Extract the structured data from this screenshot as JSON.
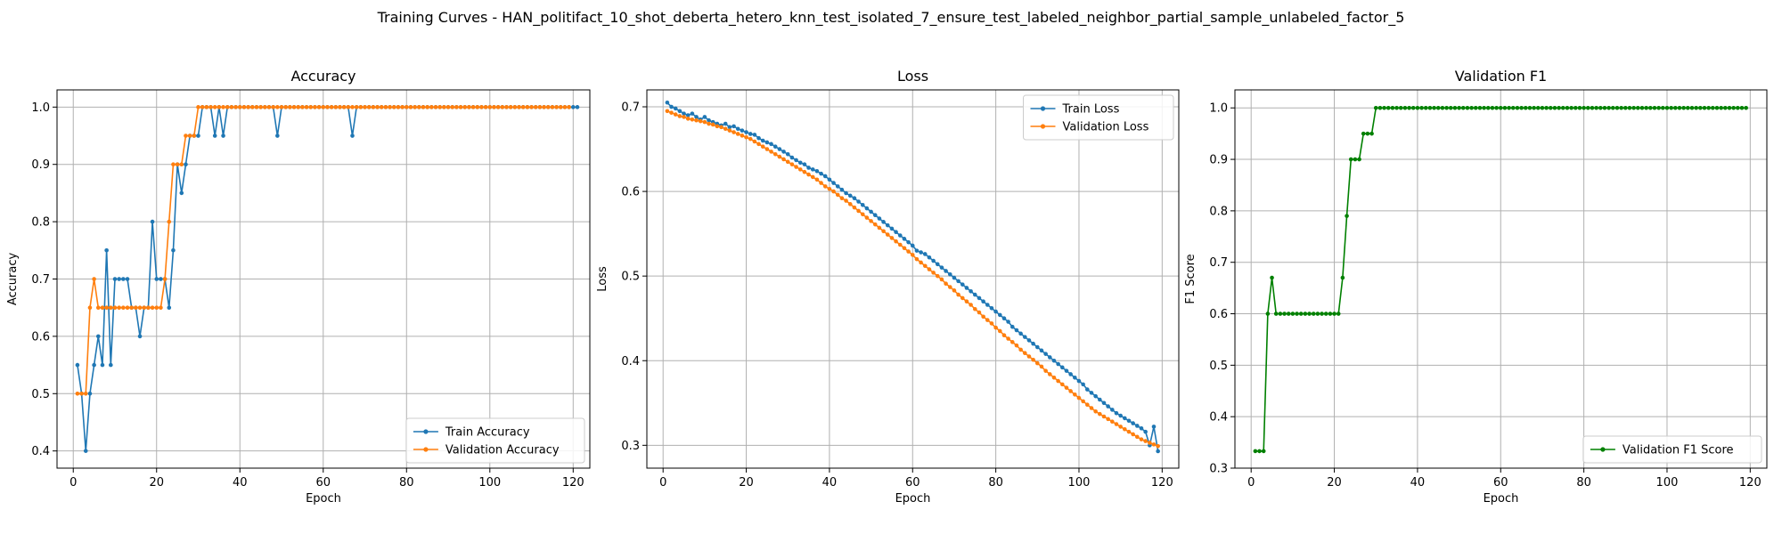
{
  "figure": {
    "suptitle": "Training Curves - HAN_politifact_10_shot_deberta_hetero_knn_test_isolated_7_ensure_test_labeled_neighbor_partial_sample_unlabeled_factor_5"
  },
  "colors": {
    "train": "#1f77b4",
    "val": "#ff7f0e",
    "f1": "#008000",
    "grid": "#b0b0b0"
  },
  "chart_data": [
    {
      "type": "line",
      "title": "Accuracy",
      "xlabel": "Epoch",
      "ylabel": "Accuracy",
      "xlim": [
        -3.9,
        124
      ],
      "ylim": [
        0.37,
        1.03
      ],
      "xticks": [
        0,
        20,
        40,
        60,
        80,
        100,
        120
      ],
      "yticks": [
        0.4,
        0.5,
        0.6,
        0.7,
        0.8,
        0.9,
        1.0
      ],
      "ytick_labels": [
        "0.4",
        "0.5",
        "0.6",
        "0.7",
        "0.8",
        "0.9",
        "1.0"
      ],
      "grid": true,
      "legend_position": "lower-right",
      "x_start": 1,
      "series": [
        {
          "name": "Train Accuracy",
          "color": "#1f77b4",
          "values": [
            0.55,
            0.5,
            0.4,
            0.5,
            0.55,
            0.6,
            0.55,
            0.75,
            0.55,
            0.7,
            0.7,
            0.7,
            0.7,
            0.65,
            0.65,
            0.6,
            0.65,
            0.65,
            0.8,
            0.7,
            0.7,
            0.7,
            0.65,
            0.75,
            0.9,
            0.85,
            0.9,
            0.95,
            0.95,
            0.95,
            1,
            1,
            1,
            0.95,
            1,
            0.95,
            1,
            1,
            1,
            1,
            1,
            1,
            1,
            1,
            1,
            1,
            1,
            1,
            0.95,
            1,
            1,
            1,
            1,
            1,
            1,
            1,
            1,
            1,
            1,
            1,
            1,
            1,
            1,
            1,
            1,
            1,
            0.95,
            1,
            1,
            1,
            1,
            1,
            1,
            1,
            1,
            1,
            1,
            1,
            1,
            1,
            1,
            1,
            1,
            1,
            1,
            1,
            1,
            1,
            1,
            1,
            1,
            1,
            1,
            1,
            1,
            1,
            1,
            1,
            1,
            1,
            1,
            1,
            1,
            1,
            1,
            1,
            1,
            1,
            1,
            1,
            1,
            1,
            1,
            1,
            1,
            1,
            1,
            1,
            1,
            1,
            1
          ]
        },
        {
          "name": "Validation Accuracy",
          "color": "#ff7f0e",
          "values": [
            0.5,
            0.5,
            0.5,
            0.65,
            0.7,
            0.65,
            0.65,
            0.65,
            0.65,
            0.65,
            0.65,
            0.65,
            0.65,
            0.65,
            0.65,
            0.65,
            0.65,
            0.65,
            0.65,
            0.65,
            0.65,
            0.7,
            0.8,
            0.9,
            0.9,
            0.9,
            0.95,
            0.95,
            0.95,
            1,
            1,
            1,
            1,
            1,
            1,
            1,
            1,
            1,
            1,
            1,
            1,
            1,
            1,
            1,
            1,
            1,
            1,
            1,
            1,
            1,
            1,
            1,
            1,
            1,
            1,
            1,
            1,
            1,
            1,
            1,
            1,
            1,
            1,
            1,
            1,
            1,
            1,
            1,
            1,
            1,
            1,
            1,
            1,
            1,
            1,
            1,
            1,
            1,
            1,
            1,
            1,
            1,
            1,
            1,
            1,
            1,
            1,
            1,
            1,
            1,
            1,
            1,
            1,
            1,
            1,
            1,
            1,
            1,
            1,
            1,
            1,
            1,
            1,
            1,
            1,
            1,
            1,
            1,
            1,
            1,
            1,
            1,
            1,
            1,
            1,
            1,
            1,
            1,
            1
          ]
        }
      ]
    },
    {
      "type": "line",
      "title": "Loss",
      "xlabel": "Epoch",
      "ylabel": "Loss",
      "xlim": [
        -3.9,
        124
      ],
      "ylim": [
        0.273,
        0.72
      ],
      "xticks": [
        0,
        20,
        40,
        60,
        80,
        100,
        120
      ],
      "yticks": [
        0.3,
        0.4,
        0.5,
        0.6,
        0.7
      ],
      "ytick_labels": [
        "0.3",
        "0.4",
        "0.5",
        "0.6",
        "0.7"
      ],
      "grid": true,
      "legend_position": "upper-right",
      "x_start": 1,
      "series": [
        {
          "name": "Train Loss",
          "color": "#1f77b4",
          "values": [
            0.705,
            0.7,
            0.698,
            0.695,
            0.692,
            0.69,
            0.692,
            0.688,
            0.685,
            0.688,
            0.684,
            0.682,
            0.68,
            0.678,
            0.68,
            0.676,
            0.677,
            0.674,
            0.672,
            0.67,
            0.668,
            0.667,
            0.663,
            0.66,
            0.658,
            0.656,
            0.653,
            0.65,
            0.647,
            0.644,
            0.64,
            0.637,
            0.634,
            0.632,
            0.628,
            0.626,
            0.624,
            0.621,
            0.618,
            0.614,
            0.61,
            0.606,
            0.602,
            0.598,
            0.595,
            0.592,
            0.588,
            0.584,
            0.58,
            0.576,
            0.572,
            0.568,
            0.564,
            0.56,
            0.556,
            0.552,
            0.548,
            0.544,
            0.54,
            0.536,
            0.53,
            0.528,
            0.526,
            0.522,
            0.518,
            0.514,
            0.51,
            0.506,
            0.502,
            0.498,
            0.494,
            0.49,
            0.486,
            0.482,
            0.478,
            0.474,
            0.47,
            0.466,
            0.462,
            0.458,
            0.454,
            0.45,
            0.446,
            0.44,
            0.436,
            0.432,
            0.428,
            0.424,
            0.42,
            0.416,
            0.412,
            0.408,
            0.404,
            0.4,
            0.396,
            0.392,
            0.388,
            0.384,
            0.38,
            0.376,
            0.372,
            0.366,
            0.362,
            0.358,
            0.354,
            0.35,
            0.346,
            0.342,
            0.338,
            0.335,
            0.332,
            0.329,
            0.326,
            0.323,
            0.32,
            0.316,
            0.3,
            0.322,
            0.293
          ]
        },
        {
          "name": "Validation Loss",
          "color": "#ff7f0e",
          "values": [
            0.695,
            0.693,
            0.691,
            0.689,
            0.688,
            0.686,
            0.685,
            0.684,
            0.683,
            0.682,
            0.68,
            0.679,
            0.677,
            0.676,
            0.674,
            0.672,
            0.67,
            0.668,
            0.666,
            0.664,
            0.662,
            0.659,
            0.656,
            0.653,
            0.65,
            0.647,
            0.644,
            0.641,
            0.638,
            0.635,
            0.632,
            0.629,
            0.626,
            0.623,
            0.62,
            0.617,
            0.614,
            0.61,
            0.606,
            0.603,
            0.6,
            0.596,
            0.592,
            0.589,
            0.585,
            0.581,
            0.577,
            0.573,
            0.569,
            0.565,
            0.561,
            0.557,
            0.553,
            0.549,
            0.545,
            0.541,
            0.537,
            0.533,
            0.529,
            0.525,
            0.52,
            0.516,
            0.512,
            0.508,
            0.504,
            0.5,
            0.496,
            0.491,
            0.487,
            0.483,
            0.478,
            0.474,
            0.47,
            0.466,
            0.461,
            0.457,
            0.452,
            0.448,
            0.444,
            0.439,
            0.435,
            0.43,
            0.426,
            0.422,
            0.418,
            0.413,
            0.409,
            0.405,
            0.401,
            0.397,
            0.393,
            0.388,
            0.384,
            0.38,
            0.376,
            0.372,
            0.368,
            0.364,
            0.36,
            0.356,
            0.352,
            0.348,
            0.344,
            0.34,
            0.337,
            0.334,
            0.331,
            0.328,
            0.325,
            0.322,
            0.319,
            0.316,
            0.313,
            0.31,
            0.307,
            0.305,
            0.303,
            0.301,
            0.299
          ]
        }
      ]
    },
    {
      "type": "line",
      "title": "Validation F1",
      "xlabel": "Epoch",
      "ylabel": "F1 Score",
      "xlim": [
        -3.9,
        124
      ],
      "ylim": [
        0.3,
        1.035
      ],
      "xticks": [
        0,
        20,
        40,
        60,
        80,
        100,
        120
      ],
      "yticks": [
        0.3,
        0.4,
        0.5,
        0.6,
        0.7,
        0.8,
        0.9,
        1.0
      ],
      "ytick_labels": [
        "0.3",
        "0.4",
        "0.5",
        "0.6",
        "0.7",
        "0.8",
        "0.9",
        "1.0"
      ],
      "grid": true,
      "legend_position": "lower-right",
      "x_start": 1,
      "series": [
        {
          "name": "Validation F1 Score",
          "color": "#008000",
          "values": [
            0.333,
            0.333,
            0.333,
            0.6,
            0.67,
            0.6,
            0.6,
            0.6,
            0.6,
            0.6,
            0.6,
            0.6,
            0.6,
            0.6,
            0.6,
            0.6,
            0.6,
            0.6,
            0.6,
            0.6,
            0.6,
            0.67,
            0.79,
            0.9,
            0.9,
            0.9,
            0.95,
            0.95,
            0.95,
            1,
            1,
            1,
            1,
            1,
            1,
            1,
            1,
            1,
            1,
            1,
            1,
            1,
            1,
            1,
            1,
            1,
            1,
            1,
            1,
            1,
            1,
            1,
            1,
            1,
            1,
            1,
            1,
            1,
            1,
            1,
            1,
            1,
            1,
            1,
            1,
            1,
            1,
            1,
            1,
            1,
            1,
            1,
            1,
            1,
            1,
            1,
            1,
            1,
            1,
            1,
            1,
            1,
            1,
            1,
            1,
            1,
            1,
            1,
            1,
            1,
            1,
            1,
            1,
            1,
            1,
            1,
            1,
            1,
            1,
            1,
            1,
            1,
            1,
            1,
            1,
            1,
            1,
            1,
            1,
            1,
            1,
            1,
            1,
            1,
            1,
            1,
            1,
            1,
            1
          ]
        }
      ]
    }
  ]
}
